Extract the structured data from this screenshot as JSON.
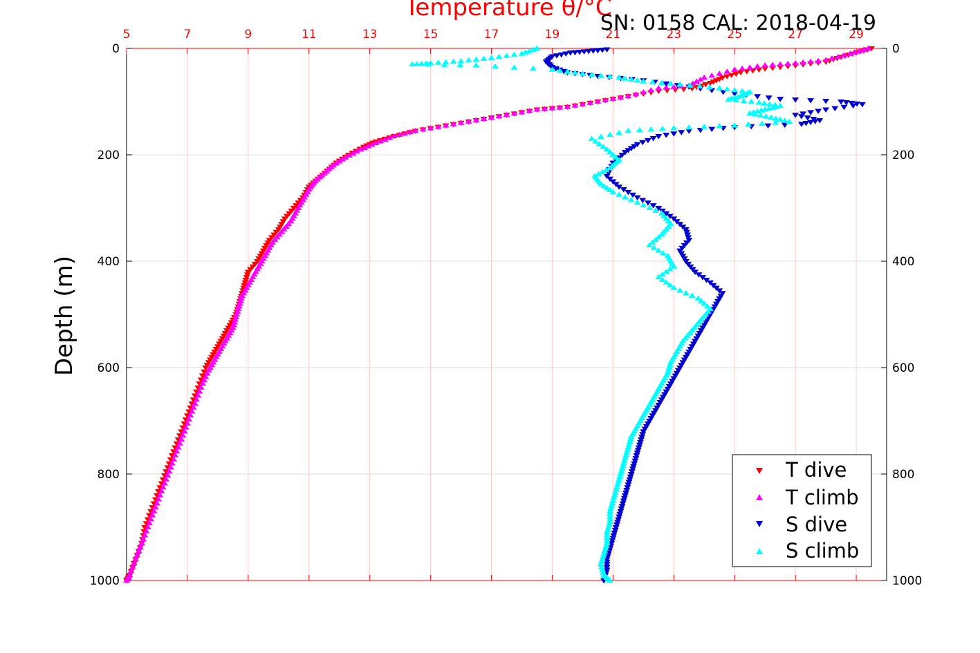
{
  "chart_data": {
    "type": "scatter",
    "title": "Temperature θ/°C",
    "subtitle": "SN: 0158  CAL: 2018-04-19",
    "ylabel": "Depth (m)",
    "xlim": [
      5,
      30
    ],
    "ylim": [
      1000,
      0
    ],
    "xticks": [
      5,
      7,
      9,
      11,
      13,
      15,
      17,
      19,
      21,
      23,
      25,
      27,
      29
    ],
    "yticks": [
      0,
      200,
      400,
      600,
      800,
      1000
    ],
    "grid": true,
    "legend_position": "bottom-right",
    "colors": {
      "t_dive": "#ff0000",
      "t_climb": "#ff00ff",
      "s_dive": "#0000cc",
      "s_climb": "#00ffff",
      "axis": "#ff0000"
    },
    "series": [
      {
        "name": "T dive",
        "marker": "triangle-down",
        "color": "#ff0000",
        "points": [
          [
            29.5,
            0
          ],
          [
            29.0,
            8
          ],
          [
            28.5,
            16
          ],
          [
            28.0,
            25
          ],
          [
            27.0,
            32
          ],
          [
            26.0,
            38
          ],
          [
            25.2,
            45
          ],
          [
            24.6,
            55
          ],
          [
            24.2,
            65
          ],
          [
            23.6,
            75
          ],
          [
            22.5,
            80
          ],
          [
            21.5,
            90
          ],
          [
            20.5,
            100
          ],
          [
            19.5,
            110
          ],
          [
            18.5,
            115
          ],
          [
            17.5,
            125
          ],
          [
            16.5,
            135
          ],
          [
            15.5,
            145
          ],
          [
            14.5,
            155
          ],
          [
            13.8,
            165
          ],
          [
            13.2,
            175
          ],
          [
            12.8,
            185
          ],
          [
            12.3,
            200
          ],
          [
            11.9,
            215
          ],
          [
            11.6,
            230
          ],
          [
            11.3,
            245
          ],
          [
            11.0,
            260
          ],
          [
            10.8,
            280
          ],
          [
            10.5,
            300
          ],
          [
            10.2,
            320
          ],
          [
            10.0,
            340
          ],
          [
            9.7,
            360
          ],
          [
            9.5,
            380
          ],
          [
            9.3,
            400
          ],
          [
            9.0,
            420
          ],
          [
            8.9,
            440
          ],
          [
            8.8,
            460
          ],
          [
            8.7,
            480
          ],
          [
            8.6,
            500
          ],
          [
            8.4,
            520
          ],
          [
            8.2,
            540
          ],
          [
            8.0,
            560
          ],
          [
            7.8,
            580
          ],
          [
            7.6,
            600
          ],
          [
            7.4,
            630
          ],
          [
            7.2,
            660
          ],
          [
            7.0,
            690
          ],
          [
            6.8,
            720
          ],
          [
            6.6,
            750
          ],
          [
            6.4,
            780
          ],
          [
            6.2,
            810
          ],
          [
            6.0,
            840
          ],
          [
            5.8,
            870
          ],
          [
            5.6,
            900
          ],
          [
            5.5,
            930
          ],
          [
            5.3,
            960
          ],
          [
            5.1,
            990
          ],
          [
            5.0,
            1000
          ]
        ]
      },
      {
        "name": "T climb",
        "marker": "triangle-up",
        "color": "#ff00ff",
        "points": [
          [
            29.4,
            0
          ],
          [
            28.8,
            10
          ],
          [
            28.0,
            22
          ],
          [
            27.0,
            28
          ],
          [
            26.0,
            32
          ],
          [
            25.0,
            40
          ],
          [
            24.0,
            55
          ],
          [
            23.5,
            70
          ],
          [
            22.5,
            75
          ],
          [
            21.5,
            90
          ],
          [
            20.5,
            100
          ],
          [
            19.5,
            110
          ],
          [
            18.5,
            115
          ],
          [
            17.5,
            125
          ],
          [
            16.5,
            135
          ],
          [
            15.5,
            145
          ],
          [
            14.5,
            155
          ],
          [
            13.8,
            165
          ],
          [
            13.2,
            178
          ],
          [
            12.7,
            190
          ],
          [
            12.2,
            205
          ],
          [
            11.8,
            220
          ],
          [
            11.5,
            235
          ],
          [
            11.2,
            250
          ],
          [
            11.0,
            265
          ],
          [
            10.8,
            285
          ],
          [
            10.6,
            305
          ],
          [
            10.4,
            325
          ],
          [
            10.1,
            345
          ],
          [
            9.8,
            365
          ],
          [
            9.6,
            385
          ],
          [
            9.4,
            405
          ],
          [
            9.2,
            425
          ],
          [
            9.0,
            445
          ],
          [
            8.8,
            465
          ],
          [
            8.7,
            485
          ],
          [
            8.6,
            505
          ],
          [
            8.5,
            525
          ],
          [
            8.3,
            545
          ],
          [
            8.1,
            565
          ],
          [
            7.9,
            585
          ],
          [
            7.7,
            605
          ],
          [
            7.5,
            630
          ],
          [
            7.3,
            660
          ],
          [
            7.1,
            690
          ],
          [
            6.9,
            720
          ],
          [
            6.7,
            750
          ],
          [
            6.5,
            780
          ],
          [
            6.3,
            810
          ],
          [
            6.1,
            840
          ],
          [
            5.9,
            870
          ],
          [
            5.7,
            900
          ],
          [
            5.5,
            930
          ],
          [
            5.3,
            960
          ],
          [
            5.1,
            990
          ],
          [
            5.0,
            1000
          ]
        ]
      },
      {
        "name": "S dive",
        "marker": "triangle-down",
        "color": "#0000cc",
        "points": [
          [
            20.8,
            2
          ],
          [
            20.2,
            5
          ],
          [
            19.6,
            8
          ],
          [
            19.0,
            15
          ],
          [
            18.8,
            25
          ],
          [
            19.0,
            35
          ],
          [
            19.5,
            45
          ],
          [
            20.5,
            52
          ],
          [
            22.0,
            60
          ],
          [
            23.5,
            72
          ],
          [
            25.0,
            85
          ],
          [
            26.5,
            95
          ],
          [
            28.5,
            100
          ],
          [
            29.2,
            105
          ],
          [
            28.0,
            115
          ],
          [
            27.0,
            125
          ],
          [
            27.8,
            135
          ],
          [
            27.2,
            142
          ],
          [
            25.0,
            148
          ],
          [
            23.5,
            155
          ],
          [
            22.5,
            165
          ],
          [
            21.8,
            180
          ],
          [
            21.4,
            195
          ],
          [
            21.0,
            215
          ],
          [
            20.8,
            240
          ],
          [
            21.2,
            260
          ],
          [
            21.8,
            280
          ],
          [
            22.5,
            300
          ],
          [
            23.0,
            320
          ],
          [
            23.4,
            340
          ],
          [
            23.5,
            360
          ],
          [
            23.2,
            380
          ],
          [
            23.4,
            400
          ],
          [
            23.7,
            420
          ],
          [
            24.2,
            440
          ],
          [
            24.6,
            460
          ],
          [
            24.4,
            480
          ],
          [
            24.2,
            500
          ],
          [
            24.0,
            520
          ],
          [
            23.8,
            540
          ],
          [
            23.6,
            560
          ],
          [
            23.4,
            580
          ],
          [
            23.2,
            600
          ],
          [
            23.0,
            620
          ],
          [
            22.8,
            640
          ],
          [
            22.6,
            660
          ],
          [
            22.4,
            680
          ],
          [
            22.2,
            700
          ],
          [
            22.0,
            720
          ],
          [
            21.9,
            740
          ],
          [
            21.8,
            760
          ],
          [
            21.7,
            780
          ],
          [
            21.6,
            800
          ],
          [
            21.5,
            820
          ],
          [
            21.4,
            840
          ],
          [
            21.3,
            860
          ],
          [
            21.2,
            880
          ],
          [
            21.1,
            900
          ],
          [
            21.0,
            920
          ],
          [
            20.9,
            940
          ],
          [
            20.8,
            960
          ],
          [
            20.8,
            980
          ],
          [
            20.7,
            1000
          ]
        ]
      },
      {
        "name": "S climb",
        "marker": "triangle-up",
        "color": "#00ffff",
        "points": [
          [
            18.5,
            0
          ],
          [
            18.0,
            10
          ],
          [
            17.0,
            18
          ],
          [
            16.0,
            24
          ],
          [
            15.0,
            28
          ],
          [
            14.4,
            30
          ],
          [
            16.5,
            32
          ],
          [
            19.0,
            40
          ],
          [
            20.0,
            48
          ],
          [
            21.2,
            55
          ],
          [
            22.0,
            62
          ],
          [
            23.2,
            68
          ],
          [
            24.5,
            75
          ],
          [
            25.5,
            82
          ],
          [
            25.2,
            90
          ],
          [
            24.8,
            96
          ],
          [
            25.8,
            102
          ],
          [
            26.5,
            108
          ],
          [
            26.0,
            115
          ],
          [
            25.5,
            122
          ],
          [
            26.2,
            130
          ],
          [
            26.8,
            138
          ],
          [
            25.0,
            145
          ],
          [
            23.0,
            150
          ],
          [
            21.5,
            155
          ],
          [
            20.3,
            170
          ],
          [
            20.8,
            190
          ],
          [
            21.2,
            210
          ],
          [
            20.9,
            225
          ],
          [
            20.4,
            240
          ],
          [
            20.6,
            255
          ],
          [
            21.0,
            270
          ],
          [
            21.8,
            290
          ],
          [
            22.6,
            310
          ],
          [
            22.9,
            330
          ],
          [
            22.6,
            350
          ],
          [
            22.2,
            370
          ],
          [
            22.8,
            390
          ],
          [
            23.0,
            410
          ],
          [
            22.5,
            430
          ],
          [
            23.0,
            450
          ],
          [
            23.8,
            470
          ],
          [
            24.2,
            490
          ],
          [
            23.9,
            510
          ],
          [
            23.6,
            530
          ],
          [
            23.3,
            550
          ],
          [
            23.1,
            570
          ],
          [
            22.9,
            590
          ],
          [
            22.8,
            610
          ],
          [
            22.6,
            630
          ],
          [
            22.4,
            650
          ],
          [
            22.2,
            670
          ],
          [
            22.0,
            690
          ],
          [
            21.8,
            710
          ],
          [
            21.6,
            730
          ],
          [
            21.5,
            750
          ],
          [
            21.4,
            770
          ],
          [
            21.3,
            790
          ],
          [
            21.2,
            810
          ],
          [
            21.1,
            830
          ],
          [
            21.0,
            850
          ],
          [
            20.9,
            870
          ],
          [
            20.9,
            890
          ],
          [
            20.8,
            910
          ],
          [
            20.8,
            930
          ],
          [
            20.7,
            950
          ],
          [
            20.6,
            970
          ],
          [
            20.7,
            990
          ],
          [
            20.9,
            1000
          ]
        ]
      }
    ]
  }
}
